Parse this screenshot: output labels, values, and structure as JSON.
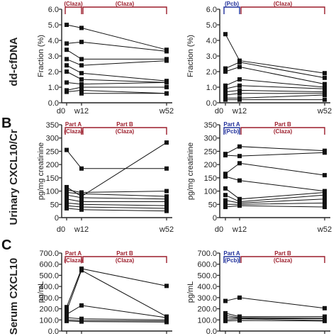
{
  "colors": {
    "claza": "#9b1c2a",
    "pcb": "#1f2f9a",
    "data": "#111111",
    "axis": "#222222"
  },
  "rows": [
    {
      "letter": "",
      "row_label": "dd-cfDNA"
    },
    {
      "letter": "B",
      "row_label": "Urinary CXCL10/Cr"
    },
    {
      "letter": "C",
      "row_label": "Serum CXCL10"
    }
  ],
  "chart_data": [
    {
      "type": "line",
      "row": 0,
      "side": "left",
      "ylabel": "Fraction (%)",
      "yticks": [
        "0.0",
        "1.0",
        "2.0",
        "3.0",
        "4.0",
        "5.0",
        "6.0"
      ],
      "ylim": [
        0,
        6
      ],
      "yticklabels_fixed": 1,
      "x": [
        "d0",
        "w12",
        "w52"
      ],
      "x_positions": [
        0,
        12,
        52
      ],
      "bracket_style": "simple",
      "brackets": [
        {
          "label": "(Claza)",
          "color": "claza"
        },
        {
          "label": "(Claza)",
          "color": "claza"
        }
      ],
      "series": [
        {
          "values": [
            5.0,
            4.8,
            3.4
          ]
        },
        {
          "values": [
            3.8,
            3.9,
            3.3
          ]
        },
        {
          "values": [
            3.4,
            2.8,
            2.8
          ]
        },
        {
          "values": [
            2.8,
            2.4,
            2.7
          ]
        },
        {
          "values": [
            2.4,
            1.9,
            1.4
          ]
        },
        {
          "values": [
            2.0,
            1.5,
            1.3
          ]
        },
        {
          "values": [
            1.3,
            1.2,
            1.3
          ]
        },
        {
          "values": [
            0.8,
            1.0,
            1.0
          ]
        },
        {
          "values": [
            0.7,
            0.8,
            0.6
          ]
        },
        {
          "values": [
            null,
            0.6,
            0.6
          ]
        }
      ]
    },
    {
      "type": "line",
      "row": 0,
      "side": "right",
      "ylabel": "Fraction (%)",
      "yticks": [
        "0.0",
        "1.0",
        "2.0",
        "3.0",
        "4.0",
        "5.0",
        "6.0"
      ],
      "ylim": [
        0,
        6
      ],
      "x": [
        "d0",
        "w12",
        "w52"
      ],
      "x_positions": [
        0,
        12,
        52
      ],
      "bracket_style": "simple",
      "brackets": [
        {
          "label": "(Pcb)",
          "color": "pcb"
        },
        {
          "label": "(Claza)",
          "color": "claza"
        }
      ],
      "series": [
        {
          "values": [
            4.4,
            2.7,
            1.9
          ]
        },
        {
          "values": [
            2.2,
            2.6,
            1.6
          ]
        },
        {
          "values": [
            2.0,
            2.3,
            1.2
          ]
        },
        {
          "values": [
            1.1,
            1.5,
            1.0
          ]
        },
        {
          "values": [
            0.9,
            1.1,
            0.9
          ]
        },
        {
          "values": [
            0.7,
            0.8,
            0.7
          ]
        },
        {
          "values": [
            0.5,
            0.6,
            0.6
          ]
        },
        {
          "values": [
            0.3,
            0.3,
            0.5
          ]
        },
        {
          "values": [
            0.2,
            0.2,
            0.2
          ]
        }
      ]
    },
    {
      "type": "line",
      "row": 1,
      "side": "left",
      "ylabel": "pg/mg creatinine",
      "yticks": [
        "0",
        "50",
        "100",
        "150",
        "200",
        "250",
        "300",
        "350"
      ],
      "ylim": [
        0,
        350
      ],
      "x": [
        "d0",
        "w12",
        "w52"
      ],
      "x_positions": [
        0,
        12,
        52
      ],
      "bracket_style": "parts",
      "brackets": [
        {
          "part": "Part  A",
          "label": "(Claza)",
          "color": "claza"
        },
        {
          "part": "Part  B",
          "label": "(Claza)",
          "color": "claza"
        }
      ],
      "series": [
        {
          "values": [
            255,
            185,
            185
          ]
        },
        {
          "values": [
            115,
            80,
            283
          ]
        },
        {
          "values": [
            105,
            95,
            100
          ]
        },
        {
          "values": [
            95,
            90,
            80
          ]
        },
        {
          "values": [
            85,
            75,
            70
          ]
        },
        {
          "values": [
            70,
            60,
            60
          ]
        },
        {
          "values": [
            55,
            50,
            45
          ]
        },
        {
          "values": [
            45,
            40,
            35
          ]
        },
        {
          "values": [
            35,
            30,
            25
          ]
        }
      ]
    },
    {
      "type": "line",
      "row": 1,
      "side": "right",
      "ylabel": "pg/mg creatinine",
      "yticks": [
        "0",
        "50",
        "100",
        "150",
        "200",
        "250",
        "300",
        "350"
      ],
      "ylim": [
        0,
        350
      ],
      "x": [
        "d0",
        "w12",
        "w52"
      ],
      "x_positions": [
        0,
        12,
        52
      ],
      "bracket_style": "parts",
      "brackets": [
        {
          "part": "Part  A",
          "label": "(Pcb)",
          "color": "pcb"
        },
        {
          "part": "Part  B",
          "label": "(Claza)",
          "color": "claza"
        }
      ],
      "series": [
        {
          "values": [
            240,
            268,
            252
          ]
        },
        {
          "values": [
            235,
            232,
            245
          ]
        },
        {
          "values": [
            165,
            205,
            160
          ]
        },
        {
          "values": [
            155,
            140,
            100
          ]
        },
        {
          "values": [
            110,
            70,
            95
          ]
        },
        {
          "values": [
            85,
            60,
            85
          ]
        },
        {
          "values": [
            65,
            55,
            70
          ]
        },
        {
          "values": [
            50,
            50,
            55
          ]
        },
        {
          "values": [
            40,
            45,
            40
          ]
        }
      ]
    },
    {
      "type": "line",
      "row": 2,
      "side": "left",
      "ylabel": "pg/mL",
      "yticks": [
        "0.0",
        "100.0",
        "200.0",
        "300.0",
        "400.0",
        "500.0",
        "600.0",
        "700.0"
      ],
      "ylim": [
        0,
        700
      ],
      "x": [
        "d0",
        "w12",
        "w52"
      ],
      "x_positions": [
        0,
        12,
        52
      ],
      "bracket_style": "parts",
      "brackets": [
        {
          "part": "Part  A",
          "label": "(Claza)",
          "color": "claza"
        },
        {
          "part": "Part  B",
          "label": "(Claza)",
          "color": "claza"
        }
      ],
      "series": [
        {
          "values": [
            215,
            560,
            405
          ]
        },
        {
          "values": [
            180,
            545,
            130
          ]
        },
        {
          "values": [
            150,
            230,
            120
          ]
        },
        {
          "values": [
            120,
            110,
            100
          ]
        },
        {
          "values": [
            100,
            95,
            90
          ]
        },
        {
          "values": [
            90,
            85,
            80
          ]
        }
      ]
    },
    {
      "type": "line",
      "row": 2,
      "side": "right",
      "ylabel": "pg/mL",
      "yticks": [
        "0.0",
        "100.0",
        "200.0",
        "300.0",
        "400.0",
        "500.0",
        "600.0",
        "700.0"
      ],
      "ylim": [
        0,
        700
      ],
      "x": [
        "d0",
        "w12",
        "w52"
      ],
      "x_positions": [
        0,
        12,
        52
      ],
      "bracket_style": "parts",
      "brackets": [
        {
          "part": "Part  A",
          "label": "(Pcb)",
          "color": "pcb"
        },
        {
          "part": "Part  B",
          "label": "(Claza)",
          "color": "claza"
        }
      ],
      "series": [
        {
          "values": [
            270,
            300,
            205
          ]
        },
        {
          "values": [
            160,
            130,
            130
          ]
        },
        {
          "values": [
            140,
            120,
            115
          ]
        },
        {
          "values": [
            120,
            115,
            110
          ]
        },
        {
          "values": [
            100,
            110,
            95
          ]
        },
        {
          "values": [
            90,
            95,
            90
          ]
        }
      ]
    }
  ]
}
